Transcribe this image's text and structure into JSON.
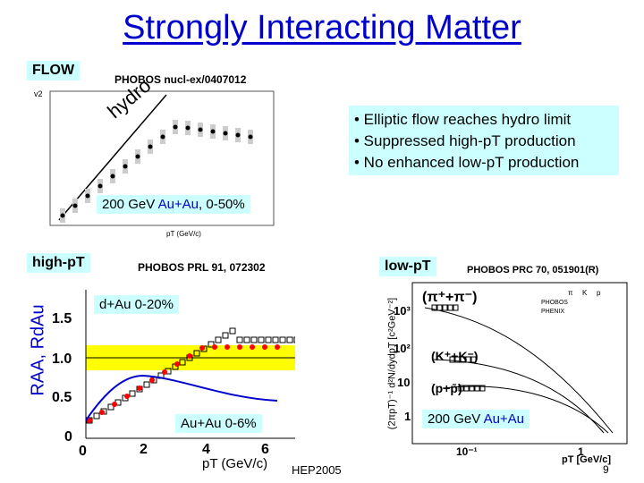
{
  "title": "Strongly Interacting Matter",
  "flow_tag": "FLOW",
  "phobos_nucl": "PHOBOS nucl-ex/0407012",
  "hydro_label": "hydro",
  "bullets": [
    "• Elliptic flow reaches hydro limit",
    "• Suppressed high-pT production",
    "• No enhanced low-pT production"
  ],
  "flow_energy": {
    "prefix": "200 GeV ",
    "system": "Au+Au",
    "suffix": ", 0-50%"
  },
  "flow_axis": {
    "ylabel": "v2",
    "xlabel": "pT (GeV/c)"
  },
  "highpt_tag": "high-pT",
  "phobos_prl": "PHOBOS PRL 91, 072302",
  "dau_label": "d+Au 0-20%",
  "auau_label": "Au+Au 0-6%",
  "raa_ylabel": "RAA, RdAu",
  "raa_xlabel": "pT (GeV/c)",
  "raa_yticks": [
    "1.5",
    "1.0",
    "0.5",
    "0"
  ],
  "raa_xticks": [
    "0",
    "2",
    "4",
    "6"
  ],
  "lowpt_tag": "low-pT",
  "phobos_prc": "PHOBOS PRC 70, 051901(R)",
  "spectra_series": [
    "(π⁺+π⁻)",
    "(K⁺+K⁻)",
    "(p+p̄)"
  ],
  "spectra_legend": [
    "PHOBOS",
    "PHENIX"
  ],
  "spectra_legend_head": [
    "π",
    "K",
    "p"
  ],
  "spectra_ylabel": "(2πpT)⁻¹ d²N/dydpT [c²GeV⁻²]",
  "spectra_yticks": [
    "10³",
    "10²",
    "10",
    "1"
  ],
  "spectra_xticks": [
    "10⁻¹",
    "1"
  ],
  "spectra_xlabel": "pT [GeV/c]",
  "spectra_energy": {
    "prefix": "200 GeV ",
    "system": "Au+Au"
  },
  "footer": {
    "venue": "HEP2005",
    "page": "9"
  },
  "colors": {
    "accent": "#0000cc",
    "highlight_box": "#ccffff",
    "band": "#ffff00",
    "dau_points": "#ff0000"
  }
}
